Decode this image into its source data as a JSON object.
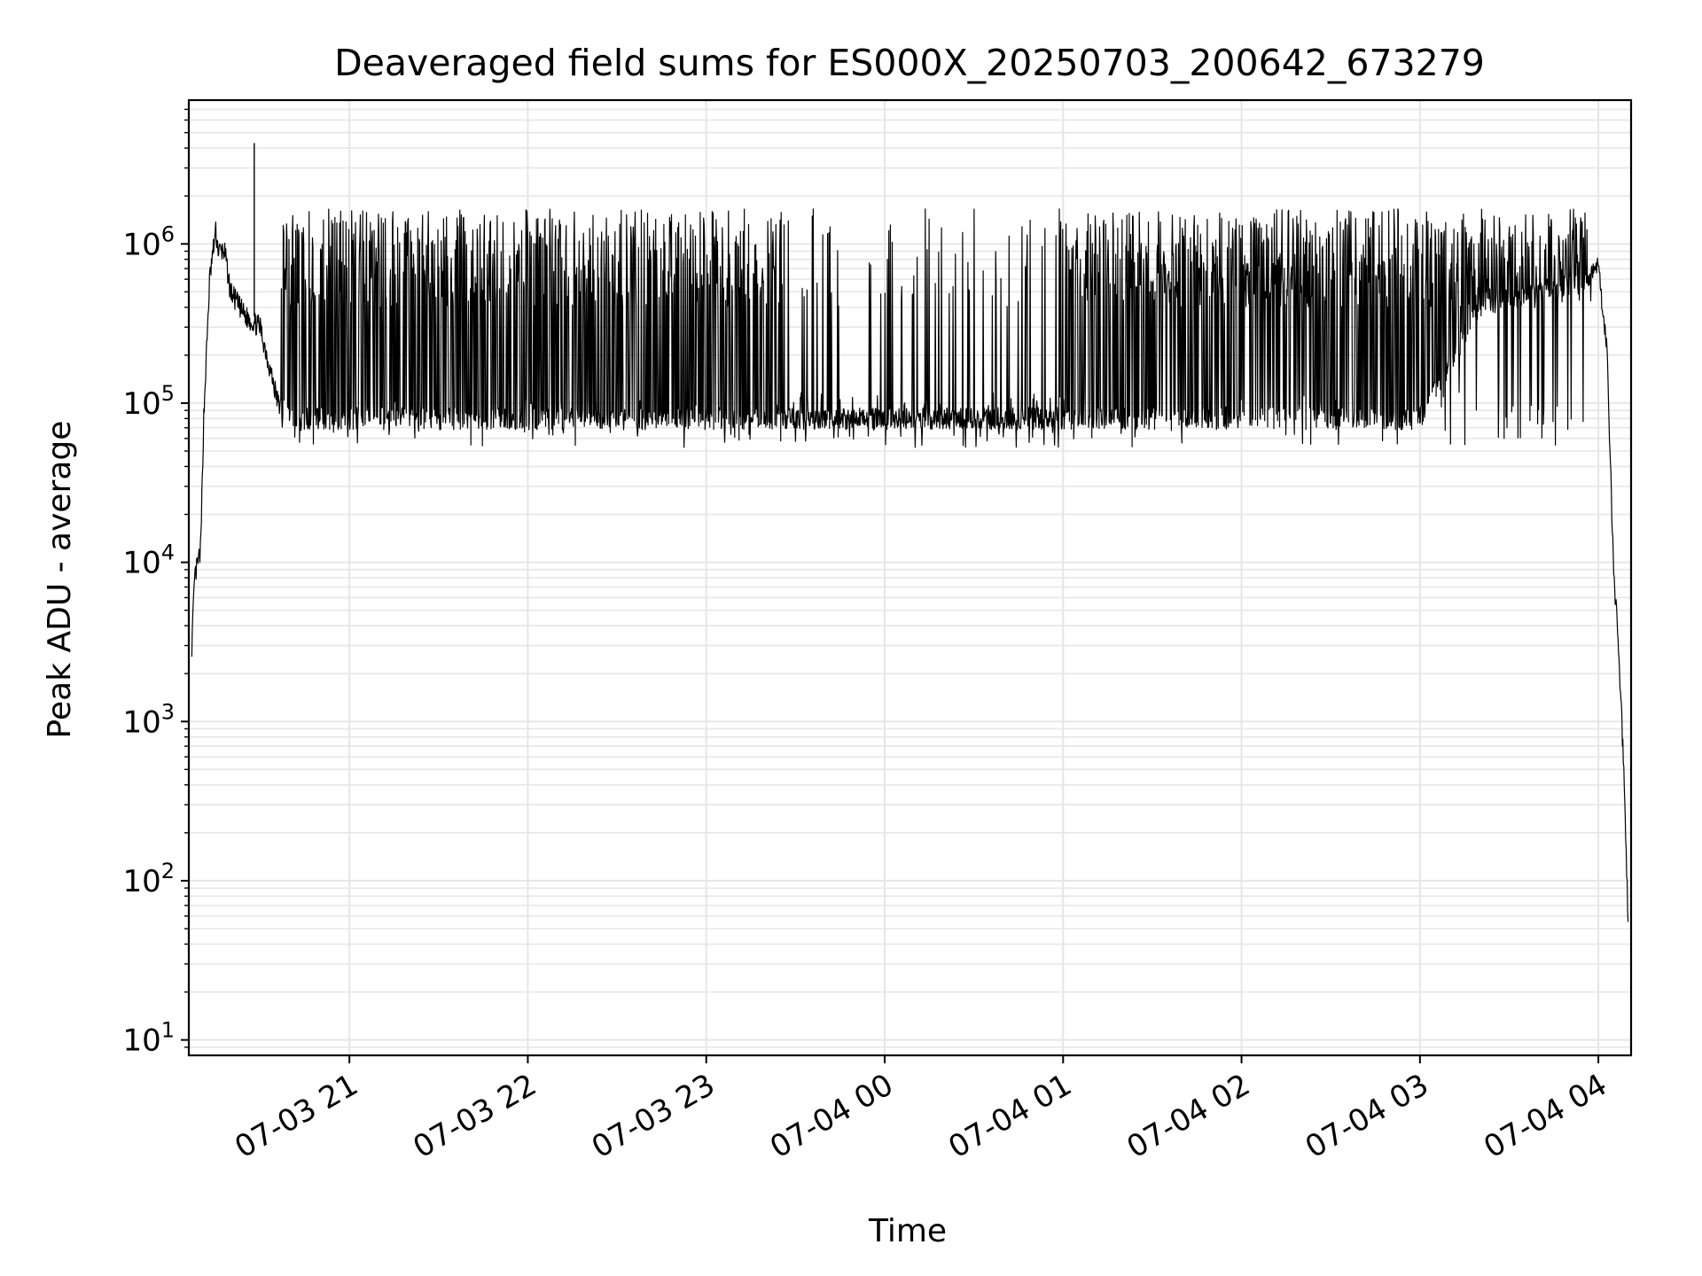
{
  "chart_data": {
    "type": "line",
    "title": "Deaveraged field sums for ES000X_20250703_200642_673279",
    "xlabel": "Time",
    "ylabel": "Peak ADU - average",
    "x_tick_labels": [
      "07-03 21",
      "07-03 22",
      "07-03 23",
      "07-04 00",
      "07-04 01",
      "07-04 02",
      "07-04 03",
      "07-04 04"
    ],
    "x_ticks": [
      "2025-07-03 21:00",
      "2025-07-03 22:00",
      "2025-07-03 23:00",
      "2025-07-04 00:00",
      "2025-07-04 01:00",
      "2025-07-04 02:00",
      "2025-07-04 03:00",
      "2025-07-04 04:00"
    ],
    "x_range": [
      "2025-07-03 20:06",
      "2025-07-04 04:11"
    ],
    "y_scale": "log",
    "y_range": [
      8,
      8000000
    ],
    "y_ticks": [
      {
        "base": "10",
        "exp": "1",
        "value": 10
      },
      {
        "base": "10",
        "exp": "2",
        "value": 100
      },
      {
        "base": "10",
        "exp": "3",
        "value": 1000
      },
      {
        "base": "10",
        "exp": "4",
        "value": 10000
      },
      {
        "base": "10",
        "exp": "5",
        "value": 100000
      },
      {
        "base": "10",
        "exp": "6",
        "value": 1000000
      }
    ],
    "grid": true,
    "line_color": "#000000",
    "grid_color": "#e6e6e6",
    "series": [
      {
        "x": [
          "2025-07-03 20:07",
          "2025-07-03 20:08",
          "2025-07-03 20:10",
          "2025-07-03 20:11",
          "2025-07-03 20:13",
          "2025-07-03 20:15",
          "2025-07-03 20:16",
          "2025-07-03 20:18",
          "2025-07-03 20:20",
          "2025-07-03 20:25",
          "2025-07-03 20:30",
          "2025-07-03 20:36",
          "2025-07-03 20:40",
          "2025-07-03 20:45",
          "2025-07-03 20:50",
          "2025-07-03 20:55",
          "2025-07-03 21:00",
          "2025-07-03 21:15",
          "2025-07-03 21:30",
          "2025-07-03 21:45",
          "2025-07-03 22:00",
          "2025-07-03 22:20",
          "2025-07-03 22:40",
          "2025-07-03 23:00",
          "2025-07-03 23:15",
          "2025-07-03 23:30",
          "2025-07-03 23:45",
          "2025-07-04 00:00",
          "2025-07-04 00:20",
          "2025-07-04 00:40",
          "2025-07-04 01:00",
          "2025-07-04 01:20",
          "2025-07-04 01:40",
          "2025-07-04 02:00",
          "2025-07-04 02:20",
          "2025-07-04 02:40",
          "2025-07-04 03:00",
          "2025-07-04 03:20",
          "2025-07-04 03:40",
          "2025-07-04 03:55",
          "2025-07-04 04:00",
          "2025-07-04 04:03",
          "2025-07-04 04:05",
          "2025-07-04 04:07",
          "2025-07-04 04:09",
          "2025-07-04 04:10"
        ],
        "y": [
          3000,
          8000,
          12000,
          80000,
          600000,
          1200000,
          900000,
          900000,
          500000,
          350000,
          300000,
          100000,
          80000,
          80000,
          80000,
          80000,
          80000,
          80000,
          80000,
          80000,
          80000,
          80000,
          80000,
          80000,
          80000,
          80000,
          80000,
          80000,
          80000,
          80000,
          80000,
          80000,
          80000,
          80000,
          80000,
          80000,
          80000,
          400000,
          500000,
          600000,
          700000,
          200000,
          10000,
          2500,
          300,
          50
        ]
      }
    ]
  }
}
